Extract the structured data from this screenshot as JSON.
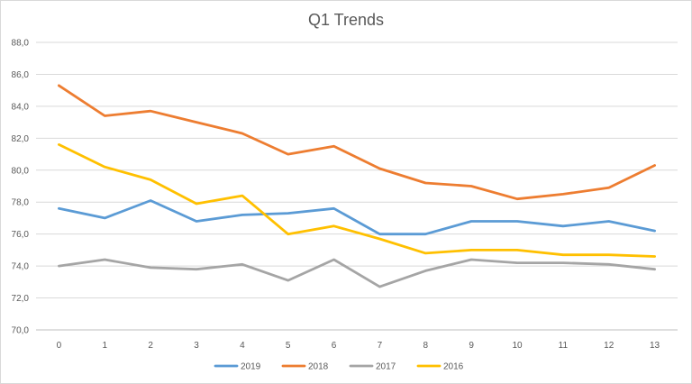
{
  "chart_data": {
    "type": "line",
    "title": "Q1 Trends",
    "xlabel": "",
    "ylabel": "",
    "x": [
      0,
      1,
      2,
      3,
      4,
      5,
      6,
      7,
      8,
      9,
      10,
      11,
      12,
      13
    ],
    "ylim": [
      70,
      88
    ],
    "ytick_values": [
      70,
      72,
      74,
      76,
      78,
      80,
      82,
      84,
      86,
      88
    ],
    "ytick_labels": [
      "70,0",
      "72,0",
      "74,0",
      "76,0",
      "78,0",
      "80,0",
      "82,0",
      "84,0",
      "86,0",
      "88,0"
    ],
    "grid": true,
    "legend_position": "bottom",
    "series": [
      {
        "name": "2019",
        "color": "#5b9bd5",
        "values": [
          77.6,
          77.0,
          78.1,
          76.8,
          77.2,
          77.3,
          77.6,
          76.0,
          76.0,
          76.8,
          76.8,
          76.5,
          76.8,
          76.2
        ]
      },
      {
        "name": "2018",
        "color": "#ed7d31",
        "values": [
          85.3,
          83.4,
          83.7,
          83.0,
          82.3,
          81.0,
          81.5,
          80.1,
          79.2,
          79.0,
          78.2,
          78.5,
          78.9,
          80.3
        ]
      },
      {
        "name": "2017",
        "color": "#a5a5a5",
        "values": [
          74.0,
          74.4,
          73.9,
          73.8,
          74.1,
          73.1,
          74.4,
          72.7,
          73.7,
          74.4,
          74.2,
          74.2,
          74.1,
          73.8
        ]
      },
      {
        "name": "2016",
        "color": "#ffc000",
        "values": [
          81.6,
          80.2,
          79.4,
          77.9,
          78.4,
          76.0,
          76.5,
          75.7,
          74.8,
          75.0,
          75.0,
          74.7,
          74.7,
          74.6
        ]
      }
    ]
  }
}
